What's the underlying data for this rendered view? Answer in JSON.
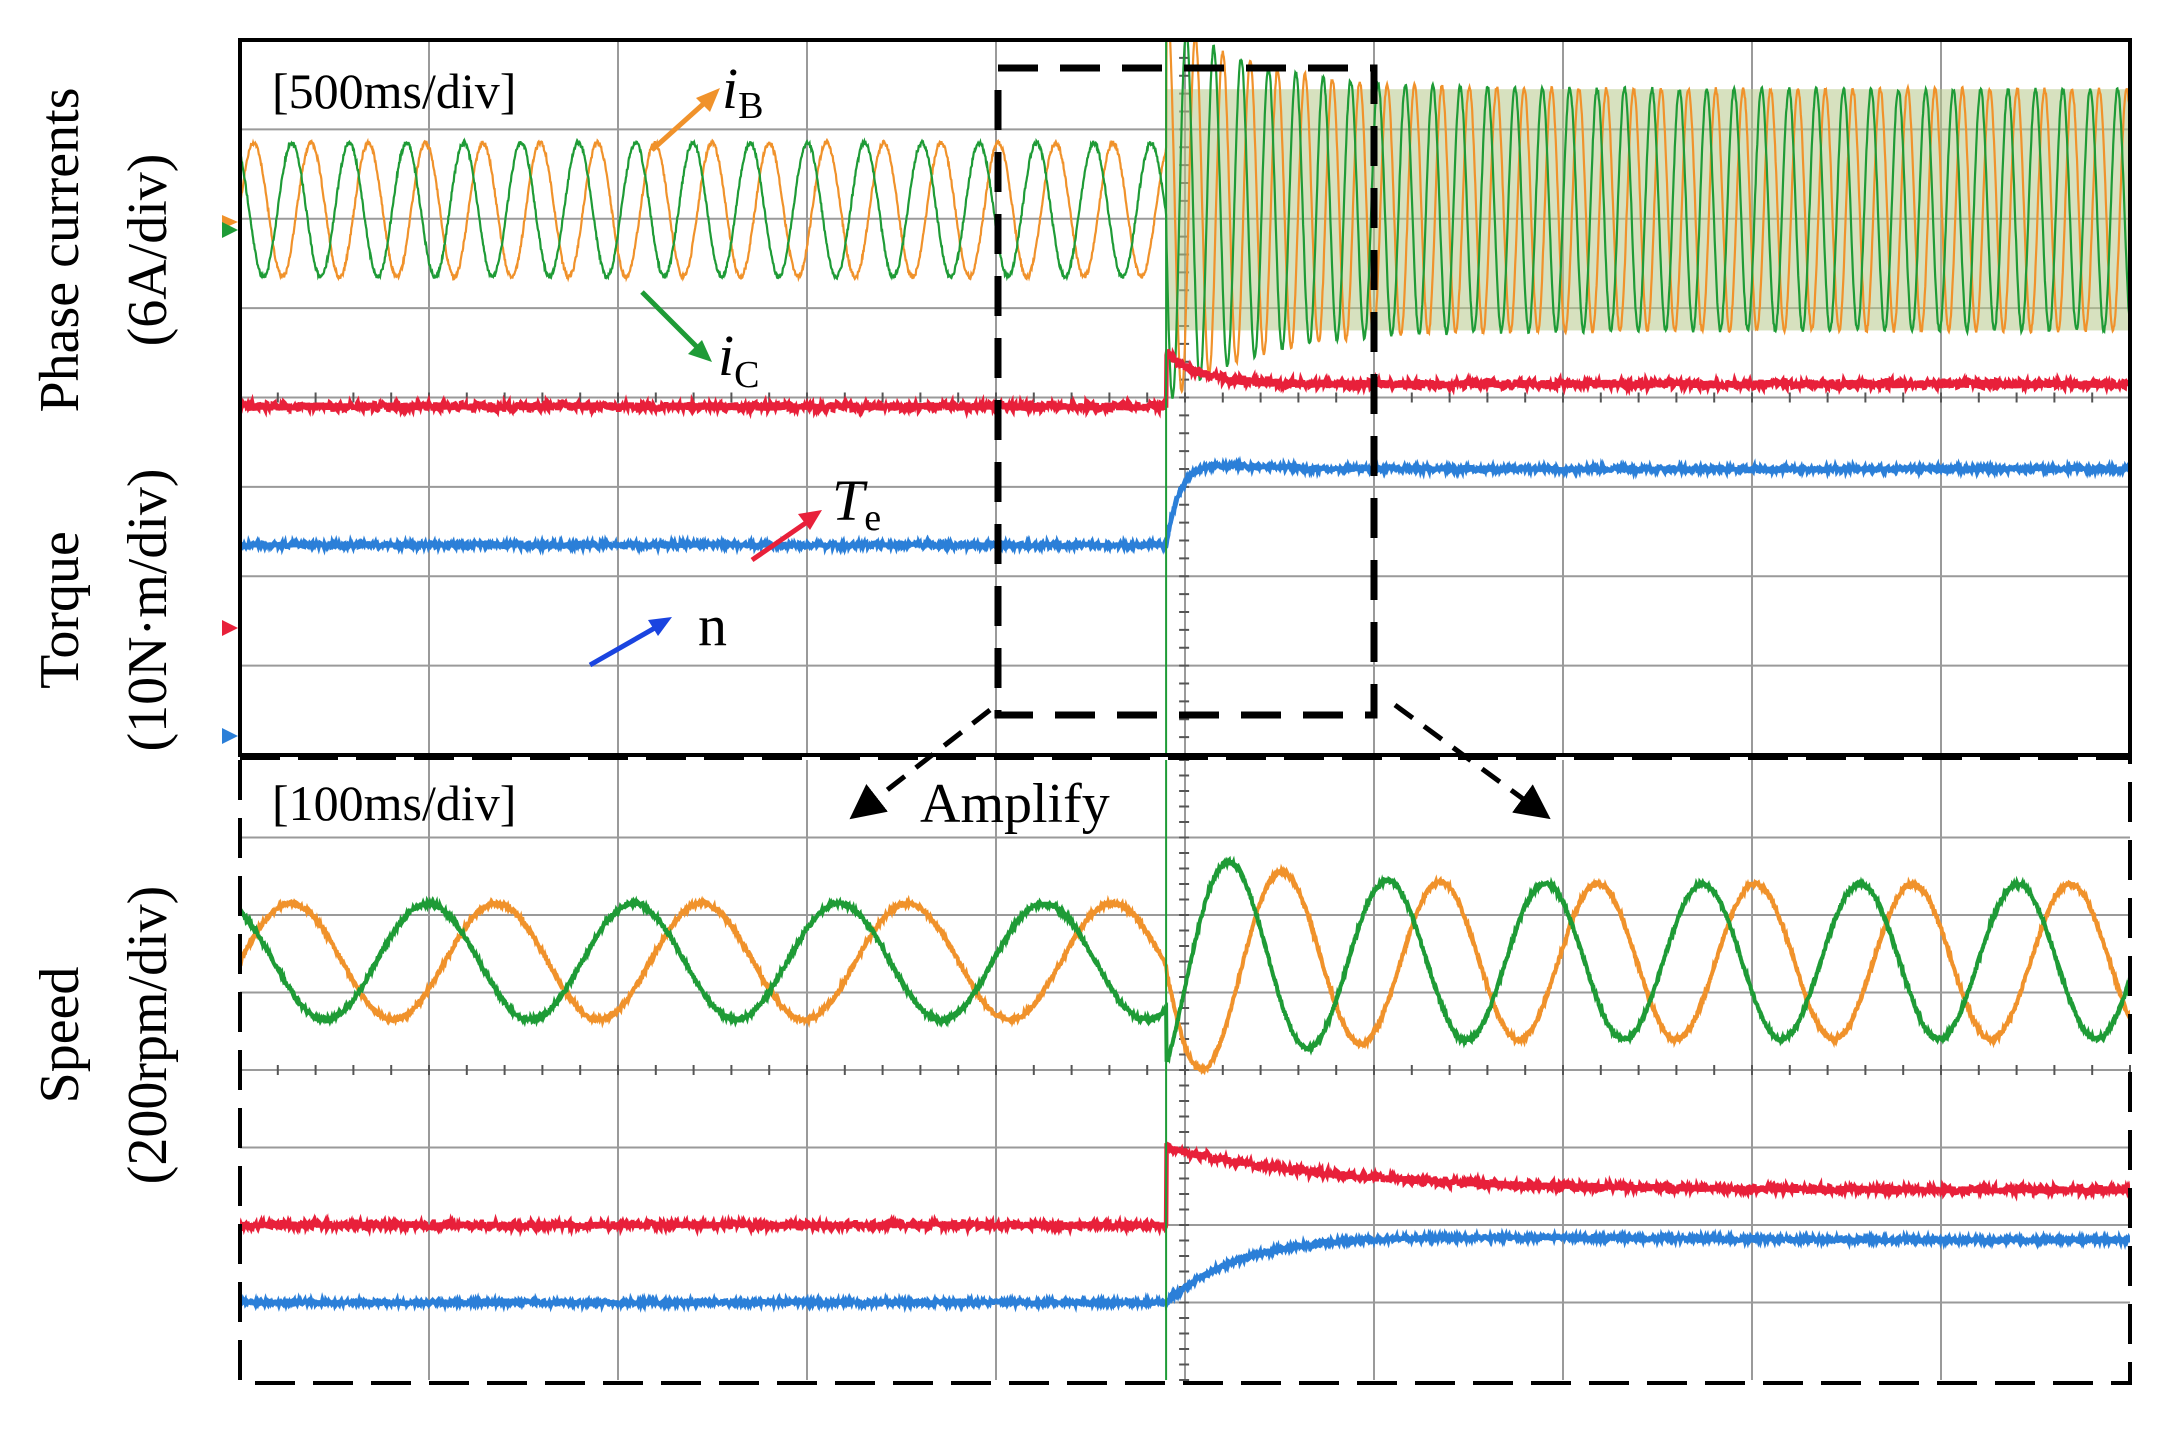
{
  "y_axis_labels": {
    "phase_currents": "Phase currents",
    "phase_currents_scale": "(6A/div)",
    "torque": "Torque",
    "torque_scale": "(10N·m/div)",
    "speed": "Speed",
    "speed_scale": "(200rpm/div)"
  },
  "colors": {
    "iB": "#F0922B",
    "iC": "#1E9B36",
    "Te": "#E8203A",
    "n": "#2B7FD8",
    "grid": "#9a9a9a",
    "frame": "#000000"
  },
  "chart_data": [
    {
      "type": "line",
      "panel": "top",
      "timebase": "[500ms/div]",
      "x_divisions": 10,
      "y_divisions": 8,
      "step_time_div": 4.9,
      "series": [
        {
          "name": "i",
          "subscript": "B",
          "before_amplitude_div": 0.75,
          "after_amplitude_div": 1.35,
          "before_cycles_per_div": 3.3,
          "after_cycles_per_div": 6.9
        },
        {
          "name": "i",
          "subscript": "C",
          "before_amplitude_div": 0.75,
          "after_amplitude_div": 1.35,
          "before_cycles_per_div": 3.3,
          "after_cycles_per_div": 6.9
        },
        {
          "name": "T",
          "subscript": "e",
          "before_level_div": 3.9,
          "peak_level_div": 4.5,
          "after_level_div": 4.15
        },
        {
          "name": "n",
          "subscript": "",
          "before_level_div": 2.35,
          "after_level_div": 3.2
        }
      ]
    },
    {
      "type": "line",
      "panel": "bottom",
      "timebase": "[100ms/div]",
      "annotation": "Amplify",
      "x_divisions": 10,
      "y_divisions": 8,
      "step_time_div": 4.9,
      "series": [
        {
          "name": "i",
          "subscript": "B",
          "before_amplitude_div": 0.75,
          "after_amplitude_div": 1.0,
          "before_cycles_per_div": 0.92,
          "after_cycles_per_div": 1.2
        },
        {
          "name": "i",
          "subscript": "C",
          "before_amplitude_div": 0.75,
          "after_amplitude_div": 1.0,
          "before_cycles_per_div": 0.92,
          "after_cycles_per_div": 1.2
        },
        {
          "name": "T",
          "subscript": "e",
          "before_level_div": 2.0,
          "peak_level_div": 3.0,
          "after_level_div": 2.45
        },
        {
          "name": "n",
          "subscript": "",
          "before_level_div": 1.0,
          "after_level_div": 1.8
        }
      ]
    }
  ]
}
